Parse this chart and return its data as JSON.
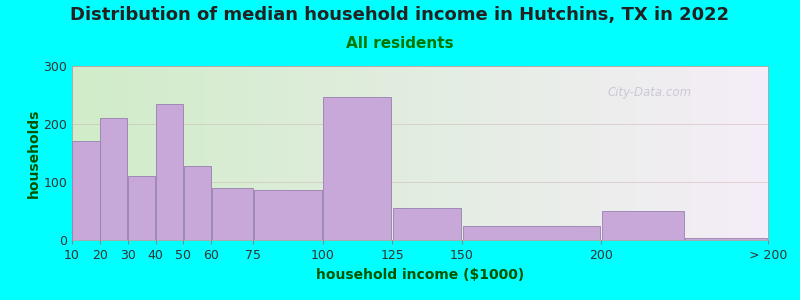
{
  "title": "Distribution of median household income in Hutchins, TX in 2022",
  "subtitle": "All residents",
  "xlabel": "household income ($1000)",
  "ylabel": "households",
  "background_outer": "#00FFFF",
  "bar_color": "#C8A8D8",
  "bar_edgecolor": "#9880B0",
  "values": [
    170,
    210,
    110,
    235,
    127,
    90,
    87,
    247,
    55,
    25,
    50,
    3
  ],
  "bar_lefts": [
    10,
    20,
    30,
    40,
    50,
    60,
    75,
    100,
    125,
    150,
    200,
    230
  ],
  "bar_rights": [
    20,
    30,
    40,
    50,
    60,
    75,
    100,
    125,
    150,
    200,
    230,
    260
  ],
  "xlim_data": [
    10,
    260
  ],
  "ylim": [
    0,
    300
  ],
  "yticks": [
    0,
    100,
    200,
    300
  ],
  "xtick_positions": [
    10,
    20,
    30,
    40,
    50,
    60,
    75,
    100,
    125,
    150,
    200,
    260
  ],
  "xtick_labels": [
    "10",
    "20",
    "30",
    "40",
    "50",
    "60",
    "75",
    "100",
    "125",
    "150",
    "200",
    "> 200"
  ],
  "title_fontsize": 13,
  "subtitle_fontsize": 11,
  "label_fontsize": 10,
  "tick_fontsize": 9,
  "title_color": "#222222",
  "subtitle_color": "#007700",
  "axis_label_color": "#005500",
  "watermark_text": "City-Data.com",
  "bg_gradient_left": "#d0ecc8",
  "bg_gradient_right": "#f5eef8"
}
